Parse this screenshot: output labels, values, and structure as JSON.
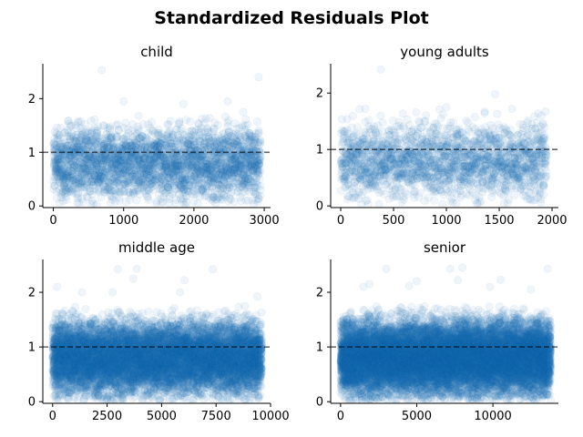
{
  "figure": {
    "title": "Standardized Residuals Plot"
  },
  "colors": {
    "points": "#1f77b4",
    "reference_line": "#000000",
    "axes": "#000000"
  },
  "chart_data": [
    {
      "type": "scatter",
      "title": "child",
      "xlim": [
        -150,
        3090
      ],
      "ylim": [
        -0.03,
        2.65
      ],
      "x_ticks": [
        0,
        1000,
        2000,
        3000
      ],
      "x_tick_labels": [
        "0",
        "1000",
        "2000",
        "3000"
      ],
      "y_ticks": [
        0,
        1,
        2
      ],
      "y_tick_labels": [
        "0",
        "1",
        "2"
      ],
      "n_points": 2950,
      "point_alpha": 0.07,
      "reference_line_y": 1,
      "outliers": [
        [
          690,
          2.53
        ],
        [
          2920,
          2.4
        ],
        [
          1000,
          1.95
        ],
        [
          1850,
          1.9
        ],
        [
          2480,
          1.95
        ],
        [
          2700,
          1.75
        ]
      ]
    },
    {
      "type": "scatter",
      "title": "young adults",
      "xlim": [
        -95,
        2060
      ],
      "ylim": [
        -0.03,
        2.52
      ],
      "x_ticks": [
        0,
        500,
        1000,
        1500,
        2000
      ],
      "x_tick_labels": [
        "0",
        "500",
        "1000",
        "1500",
        "2000"
      ],
      "y_ticks": [
        0,
        1,
        2
      ],
      "y_tick_labels": [
        "0",
        "1",
        "2"
      ],
      "n_points": 1950,
      "point_alpha": 0.07,
      "reference_line_y": 1,
      "outliers": [
        [
          380,
          2.42
        ],
        [
          1460,
          1.98
        ],
        [
          1000,
          1.75
        ],
        [
          1620,
          1.72
        ],
        [
          1900,
          1.6
        ]
      ]
    },
    {
      "type": "scatter",
      "title": "middle age",
      "xlim": [
        -450,
        10000
      ],
      "ylim": [
        -0.03,
        2.6
      ],
      "x_ticks": [
        0,
        2500,
        5000,
        7500,
        10000
      ],
      "x_tick_labels": [
        "0",
        "2500",
        "5000",
        "7500",
        "10000"
      ],
      "y_ticks": [
        0,
        1,
        2
      ],
      "y_tick_labels": [
        "0",
        "1",
        "2"
      ],
      "n_points": 9600,
      "point_alpha": 0.07,
      "reference_line_y": 1,
      "outliers": [
        [
          3000,
          2.42
        ],
        [
          3860,
          2.43
        ],
        [
          7350,
          2.42
        ],
        [
          3700,
          2.25
        ],
        [
          6050,
          2.22
        ],
        [
          200,
          2.1
        ],
        [
          1350,
          2.0
        ],
        [
          2750,
          2.0
        ],
        [
          5850,
          2.0
        ],
        [
          9400,
          1.92
        ]
      ]
    },
    {
      "type": "scatter",
      "title": "senior",
      "xlim": [
        -650,
        14300
      ],
      "ylim": [
        -0.03,
        2.6
      ],
      "x_ticks": [
        0,
        5000,
        10000
      ],
      "x_tick_labels": [
        "0",
        "5000",
        "10000"
      ],
      "y_ticks": [
        0,
        1,
        2
      ],
      "y_tick_labels": [
        "0",
        "1",
        "2"
      ],
      "n_points": 13800,
      "point_alpha": 0.07,
      "reference_line_y": 1,
      "outliers": [
        [
          3000,
          2.43
        ],
        [
          7200,
          2.43
        ],
        [
          8000,
          2.45
        ],
        [
          13600,
          2.43
        ],
        [
          10500,
          2.23
        ],
        [
          5000,
          2.2
        ],
        [
          7700,
          2.22
        ],
        [
          1500,
          2.1
        ],
        [
          1900,
          2.15
        ],
        [
          4500,
          2.12
        ],
        [
          9800,
          2.1
        ],
        [
          12500,
          2.05
        ]
      ]
    }
  ]
}
